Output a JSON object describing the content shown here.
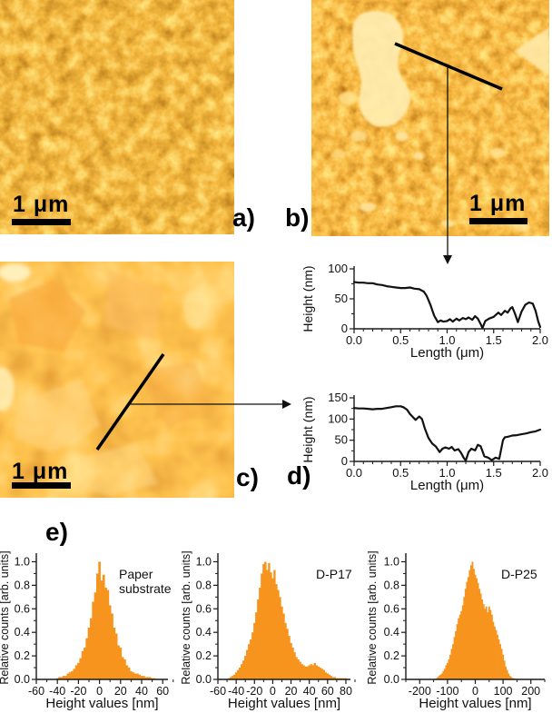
{
  "figure": {
    "panel_labels": {
      "a": "a)",
      "b": "b)",
      "c": "c)",
      "d": "d)",
      "e": "e)"
    },
    "scale_bar_label": "1 μm"
  },
  "colors": {
    "histogram_fill": "#F7941E",
    "profile_line": "#111111",
    "axis": "#1a1a1a",
    "text": "#111111",
    "panel_label": "#000000",
    "scale_bar": "#000000"
  },
  "chart_data": [
    {
      "id": "profile_b",
      "type": "line",
      "title": "",
      "xlabel": "Length (μm)",
      "ylabel": "Height (nm)",
      "xlim": [
        0,
        2
      ],
      "ylim": [
        0,
        100
      ],
      "xticks": [
        [
          0,
          "0.0"
        ],
        [
          0.5,
          "0.5"
        ],
        [
          1,
          "1.0"
        ],
        [
          1.5,
          "1.5"
        ],
        [
          2,
          "2.0"
        ]
      ],
      "yticks": [
        [
          0,
          "0"
        ],
        [
          50,
          "50"
        ],
        [
          100,
          "100"
        ]
      ],
      "points": [
        [
          0,
          78
        ],
        [
          0.05,
          77
        ],
        [
          0.1,
          77
        ],
        [
          0.15,
          76
        ],
        [
          0.2,
          76
        ],
        [
          0.25,
          74
        ],
        [
          0.3,
          73
        ],
        [
          0.35,
          71
        ],
        [
          0.4,
          70
        ],
        [
          0.45,
          69
        ],
        [
          0.5,
          68
        ],
        [
          0.55,
          68
        ],
        [
          0.6,
          69
        ],
        [
          0.65,
          67
        ],
        [
          0.7,
          66
        ],
        [
          0.75,
          62
        ],
        [
          0.78,
          55
        ],
        [
          0.82,
          40
        ],
        [
          0.86,
          22
        ],
        [
          0.9,
          11
        ],
        [
          0.93,
          14
        ],
        [
          0.96,
          12
        ],
        [
          1,
          13
        ],
        [
          1.03,
          16
        ],
        [
          1.06,
          12
        ],
        [
          1.1,
          17
        ],
        [
          1.13,
          14
        ],
        [
          1.17,
          18
        ],
        [
          1.2,
          16
        ],
        [
          1.23,
          19
        ],
        [
          1.27,
          15
        ],
        [
          1.3,
          21
        ],
        [
          1.33,
          17
        ],
        [
          1.36,
          8
        ],
        [
          1.38,
          1
        ],
        [
          1.41,
          13
        ],
        [
          1.45,
          17
        ],
        [
          1.5,
          20
        ],
        [
          1.55,
          27
        ],
        [
          1.58,
          23
        ],
        [
          1.62,
          30
        ],
        [
          1.65,
          27
        ],
        [
          1.68,
          34
        ],
        [
          1.7,
          36
        ],
        [
          1.73,
          25
        ],
        [
          1.76,
          11
        ],
        [
          1.8,
          29
        ],
        [
          1.84,
          40
        ],
        [
          1.88,
          44
        ],
        [
          1.92,
          42
        ],
        [
          1.95,
          30
        ],
        [
          1.98,
          12
        ],
        [
          2,
          3
        ]
      ]
    },
    {
      "id": "profile_d",
      "type": "line",
      "title": "",
      "xlabel": "Length (μm)",
      "ylabel": "Height (nm)",
      "xlim": [
        0,
        2
      ],
      "ylim": [
        0,
        150
      ],
      "xticks": [
        [
          0,
          "0.0"
        ],
        [
          0.5,
          "0.5"
        ],
        [
          1,
          "1.0"
        ],
        [
          1.5,
          "1.5"
        ],
        [
          2,
          "2.0"
        ]
      ],
      "yticks": [
        [
          0,
          "0"
        ],
        [
          50,
          "50"
        ],
        [
          100,
          "100"
        ],
        [
          150,
          "150"
        ]
      ],
      "points": [
        [
          0,
          126
        ],
        [
          0.05,
          125
        ],
        [
          0.1,
          125
        ],
        [
          0.15,
          124
        ],
        [
          0.2,
          123
        ],
        [
          0.25,
          124
        ],
        [
          0.3,
          124
        ],
        [
          0.35,
          126
        ],
        [
          0.4,
          128
        ],
        [
          0.45,
          130
        ],
        [
          0.5,
          130
        ],
        [
          0.53,
          128
        ],
        [
          0.57,
          122
        ],
        [
          0.6,
          112
        ],
        [
          0.63,
          105
        ],
        [
          0.66,
          98
        ],
        [
          0.7,
          106
        ],
        [
          0.73,
          100
        ],
        [
          0.76,
          78
        ],
        [
          0.8,
          55
        ],
        [
          0.84,
          42
        ],
        [
          0.88,
          35
        ],
        [
          0.92,
          22
        ],
        [
          0.95,
          30
        ],
        [
          0.98,
          33
        ],
        [
          1.02,
          30
        ],
        [
          1.05,
          34
        ],
        [
          1.08,
          26
        ],
        [
          1.12,
          29
        ],
        [
          1.15,
          20
        ],
        [
          1.18,
          8
        ],
        [
          1.2,
          2
        ],
        [
          1.23,
          22
        ],
        [
          1.26,
          30
        ],
        [
          1.3,
          26
        ],
        [
          1.33,
          39
        ],
        [
          1.36,
          36
        ],
        [
          1.4,
          12
        ],
        [
          1.44,
          9
        ],
        [
          1.48,
          3
        ],
        [
          1.52,
          9
        ],
        [
          1.56,
          6
        ],
        [
          1.6,
          50
        ],
        [
          1.62,
          57
        ],
        [
          1.65,
          58
        ],
        [
          1.7,
          61
        ],
        [
          1.75,
          62
        ],
        [
          1.8,
          64
        ],
        [
          1.85,
          66
        ],
        [
          1.9,
          69
        ],
        [
          1.95,
          71
        ],
        [
          2,
          75
        ]
      ]
    },
    {
      "id": "hist_paper",
      "type": "bar",
      "title": "",
      "label_lines": [
        "Paper",
        "substrate"
      ],
      "xlabel": "Height values [nm]",
      "ylabel": "Relative counts [arb. units]",
      "xlim": [
        -60,
        65
      ],
      "ylim": [
        0,
        1.05
      ],
      "xticks": [
        [
          -60,
          "-60"
        ],
        [
          -40,
          "-40"
        ],
        [
          -20,
          "-20"
        ],
        [
          0,
          "0"
        ],
        [
          20,
          "20"
        ],
        [
          40,
          "40"
        ],
        [
          60,
          "60"
        ]
      ],
      "yticks": [
        [
          0,
          "0.0"
        ],
        [
          0.2,
          "0.2"
        ],
        [
          0.4,
          "0.4"
        ],
        [
          0.6,
          "0.6"
        ],
        [
          0.8,
          "0.8"
        ],
        [
          1,
          "1.0"
        ]
      ],
      "x_start": -40,
      "x_step": 2,
      "values": [
        0.01,
        0.02,
        0.02,
        0.03,
        0.03,
        0.05,
        0.06,
        0.07,
        0.09,
        0.12,
        0.14,
        0.18,
        0.24,
        0.27,
        0.35,
        0.44,
        0.52,
        0.66,
        0.74,
        0.9,
        1.0,
        0.84,
        0.89,
        0.78,
        0.76,
        0.63,
        0.56,
        0.44,
        0.39,
        0.29,
        0.27,
        0.19,
        0.17,
        0.12,
        0.1,
        0.07,
        0.06,
        0.05,
        0.05,
        0.04,
        0.03,
        0.03,
        0.02,
        0.02,
        0.02,
        0.01,
        0.01
      ]
    },
    {
      "id": "hist_dp17",
      "type": "bar",
      "title": "",
      "label_lines": [
        "D-P17"
      ],
      "xlabel": "Height values [nm]",
      "ylabel": "Relative counts [arb. units]",
      "xlim": [
        -60,
        85
      ],
      "ylim": [
        0,
        1.05
      ],
      "xticks": [
        [
          -60,
          "-60"
        ],
        [
          -40,
          "-40"
        ],
        [
          -20,
          "-20"
        ],
        [
          0,
          "0"
        ],
        [
          20,
          "20"
        ],
        [
          40,
          "40"
        ],
        [
          60,
          "60"
        ],
        [
          80,
          "80"
        ]
      ],
      "yticks": [
        [
          0,
          "0.0"
        ],
        [
          0.2,
          "0.2"
        ],
        [
          0.4,
          "0.4"
        ],
        [
          0.6,
          "0.6"
        ],
        [
          0.8,
          "0.8"
        ],
        [
          1,
          "1.0"
        ]
      ],
      "x_start": -48,
      "x_step": 2,
      "values": [
        0.01,
        0.02,
        0.03,
        0.04,
        0.06,
        0.08,
        0.1,
        0.13,
        0.16,
        0.2,
        0.25,
        0.3,
        0.34,
        0.4,
        0.48,
        0.57,
        0.68,
        0.78,
        0.9,
        0.98,
        1.0,
        0.93,
        0.99,
        0.91,
        0.86,
        0.93,
        0.81,
        0.76,
        0.7,
        0.62,
        0.56,
        0.48,
        0.43,
        0.37,
        0.31,
        0.27,
        0.23,
        0.19,
        0.17,
        0.15,
        0.13,
        0.12,
        0.11,
        0.11,
        0.12,
        0.13,
        0.12,
        0.14,
        0.12,
        0.11,
        0.1,
        0.09,
        0.08,
        0.06,
        0.05,
        0.04,
        0.03,
        0.02,
        0.02,
        0.01,
        0.01,
        0.01,
        0.01,
        0.01,
        0.01
      ]
    },
    {
      "id": "hist_dp25",
      "type": "bar",
      "title": "",
      "label_lines": [
        "D-P25"
      ],
      "xlabel": "Height values [nm]",
      "ylabel": "Relative counts [arb. units]",
      "xlim": [
        -250,
        250
      ],
      "ylim": [
        0,
        1.05
      ],
      "xticks": [
        [
          -200,
          "-200"
        ],
        [
          -100,
          "-100"
        ],
        [
          0,
          "0"
        ],
        [
          100,
          "100"
        ],
        [
          200,
          "200"
        ]
      ],
      "yticks": [
        [
          0,
          "0.0"
        ],
        [
          0.2,
          "0.2"
        ],
        [
          0.4,
          "0.4"
        ],
        [
          0.6,
          "0.6"
        ],
        [
          0.8,
          "0.8"
        ],
        [
          1,
          "1.0"
        ]
      ],
      "x_start": -140,
      "x_step": 5,
      "values": [
        0.01,
        0.02,
        0.03,
        0.04,
        0.05,
        0.07,
        0.09,
        0.12,
        0.14,
        0.17,
        0.21,
        0.26,
        0.3,
        0.36,
        0.41,
        0.47,
        0.52,
        0.55,
        0.58,
        0.63,
        0.7,
        0.77,
        0.83,
        0.87,
        0.93,
        0.97,
        1.0,
        0.94,
        0.89,
        0.86,
        0.82,
        0.77,
        0.73,
        0.68,
        0.64,
        0.6,
        0.62,
        0.57,
        0.62,
        0.59,
        0.55,
        0.49,
        0.45,
        0.42,
        0.38,
        0.34,
        0.3,
        0.26,
        0.21,
        0.16,
        0.11,
        0.08,
        0.05,
        0.03,
        0.02,
        0.01,
        0.01
      ]
    }
  ]
}
